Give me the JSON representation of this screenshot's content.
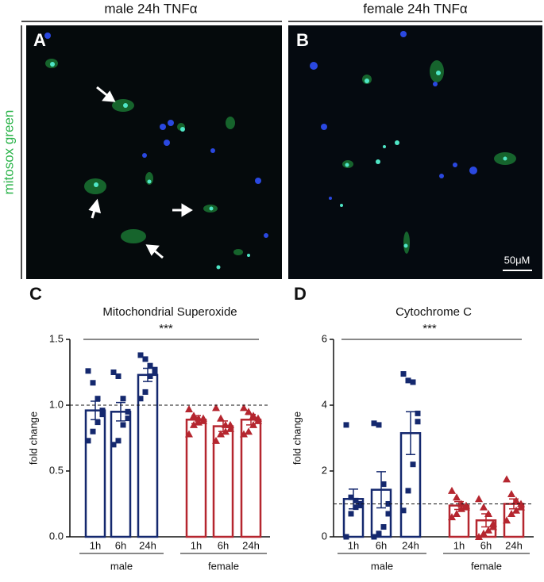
{
  "panels": [
    {
      "letter": "A",
      "heading": "male 24h TNFα"
    },
    {
      "letter": "B",
      "heading": "female 24h TNFα"
    }
  ],
  "stain_label": "mitosox green",
  "scale_bar": "50μM",
  "chart_data": [
    {
      "type": "bar",
      "panel": "C",
      "title": "Mitochondrial Superoxide",
      "ylabel": "fold change",
      "annotation": "***",
      "categories": [
        "1h",
        "6h",
        "24h",
        "1h",
        "6h",
        "24h"
      ],
      "groups": [
        {
          "name": "male",
          "color": "#14286e",
          "marker": "square"
        },
        {
          "name": "female",
          "color": "#b5262f",
          "marker": "triangle"
        }
      ],
      "values": [
        0.96,
        0.95,
        1.23,
        0.89,
        0.84,
        0.89
      ],
      "errors": [
        0.07,
        0.07,
        0.05,
        0.03,
        0.04,
        0.04
      ],
      "points": [
        [
          1.26,
          1.17,
          1.05,
          0.96,
          0.93,
          0.87,
          0.8,
          0.73
        ],
        [
          1.25,
          1.22,
          1.05,
          0.95,
          0.9,
          0.85,
          0.73,
          0.7
        ],
        [
          1.38,
          1.35,
          1.3,
          1.27,
          1.25,
          1.22,
          1.1,
          1.05
        ],
        [
          0.97,
          0.92,
          0.9,
          0.9,
          0.88,
          0.87,
          0.85,
          0.78
        ],
        [
          0.98,
          0.9,
          0.85,
          0.85,
          0.82,
          0.8,
          0.78,
          0.73
        ],
        [
          0.98,
          0.95,
          0.92,
          0.9,
          0.88,
          0.85,
          0.8,
          0.78
        ]
      ],
      "reference_line": 1,
      "ylim": [
        0,
        1.5
      ],
      "yticks": [
        {
          "value": 0,
          "label": "0.0"
        },
        0.5,
        {
          "value": 1,
          "label": "1.0"
        },
        1.5
      ]
    },
    {
      "type": "bar",
      "panel": "D",
      "title": "Cytochrome C",
      "ylabel": "fold change",
      "annotation": "***",
      "categories": [
        "1h",
        "6h",
        "24h",
        "1h",
        "6h",
        "24h"
      ],
      "groups": [
        {
          "name": "male",
          "color": "#14286e",
          "marker": "square"
        },
        {
          "name": "female",
          "color": "#b5262f",
          "marker": "triangle"
        }
      ],
      "values": [
        1.15,
        1.43,
        3.15,
        0.95,
        0.5,
        1.0
      ],
      "errors": [
        0.3,
        0.55,
        0.65,
        0.12,
        0.2,
        0.15
      ],
      "points": [
        [
          3.4,
          1.2,
          1.1,
          1.0,
          0.95,
          0.9,
          0.7,
          0.0
        ],
        [
          3.45,
          3.4,
          1.6,
          1.0,
          0.7,
          0.3,
          0.1,
          0.0
        ],
        [
          4.95,
          4.75,
          4.7,
          3.75,
          3.5,
          2.2,
          1.4,
          0.8
        ],
        [
          1.4,
          1.2,
          1.0,
          0.95,
          0.9,
          0.85,
          0.7,
          0.6
        ],
        [
          1.15,
          0.9,
          0.7,
          0.4,
          0.3,
          0.2,
          0.1,
          0.0
        ],
        [
          1.75,
          1.3,
          1.1,
          1.0,
          0.9,
          0.8,
          0.7,
          0.5
        ]
      ],
      "reference_line": 1,
      "ylim": [
        0,
        6
      ],
      "yticks": [
        0,
        2,
        4,
        6
      ]
    }
  ]
}
